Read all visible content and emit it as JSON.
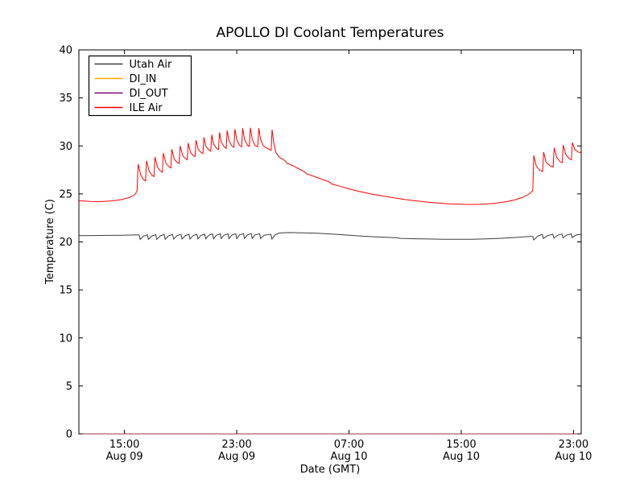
{
  "chart_data": {
    "type": "line",
    "title": "APOLLO DI Coolant Temperatures",
    "xlabel": "Date (GMT)",
    "ylabel": "Temperature (C)",
    "ylim": [
      0,
      40
    ],
    "yticks": [
      0,
      5,
      10,
      15,
      20,
      25,
      30,
      35,
      40
    ],
    "xlim": [
      0,
      35.8
    ],
    "x_units_note": "hours from left edge of plot",
    "xticks": [
      {
        "t": 3.25,
        "time": "15:00",
        "date": "Aug 09"
      },
      {
        "t": 11.25,
        "time": "23:00",
        "date": "Aug 09"
      },
      {
        "t": 19.25,
        "time": "07:00",
        "date": "Aug 10"
      },
      {
        "t": 27.25,
        "time": "15:00",
        "date": "Aug 10"
      },
      {
        "t": 35.25,
        "time": "23:00",
        "date": "Aug 10"
      }
    ],
    "legend": {
      "position": "upper left",
      "entries": [
        "Utah Air",
        "DI_IN",
        "DI_OUT",
        "ILE Air"
      ]
    },
    "series": [
      {
        "name": "Utah Air",
        "color": "#3c3c3c",
        "opacity": 1,
        "points": [
          [
            0,
            20.65
          ],
          [
            1,
            20.66
          ],
          [
            2,
            20.68
          ],
          [
            3,
            20.7
          ],
          [
            4,
            20.72
          ],
          [
            4.3,
            20.72
          ],
          [
            4.37,
            20.25
          ],
          [
            4.6,
            20.6
          ],
          [
            4.88,
            20.74
          ],
          [
            4.95,
            20.26
          ],
          [
            5.2,
            20.62
          ],
          [
            5.48,
            20.75
          ],
          [
            5.55,
            20.27
          ],
          [
            5.8,
            20.63
          ],
          [
            6.08,
            20.76
          ],
          [
            6.15,
            20.28
          ],
          [
            6.4,
            20.64
          ],
          [
            6.68,
            20.77
          ],
          [
            6.75,
            20.29
          ],
          [
            7,
            20.65
          ],
          [
            7.28,
            20.78
          ],
          [
            7.35,
            20.3
          ],
          [
            7.6,
            20.66
          ],
          [
            7.85,
            20.79
          ],
          [
            7.92,
            20.3
          ],
          [
            8.15,
            20.67
          ],
          [
            8.41,
            20.8
          ],
          [
            8.48,
            20.31
          ],
          [
            8.7,
            20.68
          ],
          [
            8.97,
            20.81
          ],
          [
            9.04,
            20.32
          ],
          [
            9.25,
            20.69
          ],
          [
            9.53,
            20.82
          ],
          [
            9.6,
            20.33
          ],
          [
            9.8,
            20.7
          ],
          [
            10.08,
            20.83
          ],
          [
            10.15,
            20.34
          ],
          [
            10.35,
            20.71
          ],
          [
            10.63,
            20.84
          ],
          [
            10.7,
            20.34
          ],
          [
            10.9,
            20.72
          ],
          [
            11.18,
            20.85
          ],
          [
            11.25,
            20.35
          ],
          [
            11.45,
            20.73
          ],
          [
            11.73,
            20.86
          ],
          [
            11.8,
            20.35
          ],
          [
            12,
            20.73
          ],
          [
            12.28,
            20.86
          ],
          [
            12.35,
            20.35
          ],
          [
            12.55,
            20.73
          ],
          [
            12.88,
            20.85
          ],
          [
            12.95,
            20.34
          ],
          [
            13.2,
            20.7
          ],
          [
            13.68,
            20.8
          ],
          [
            13.75,
            20.3
          ],
          [
            14,
            20.75
          ],
          [
            14.3,
            20.93
          ],
          [
            15,
            20.97
          ],
          [
            16,
            20.95
          ],
          [
            17,
            20.9
          ],
          [
            18,
            20.82
          ],
          [
            19,
            20.72
          ],
          [
            20,
            20.62
          ],
          [
            21,
            20.54
          ],
          [
            22,
            20.47
          ],
          [
            22.7,
            20.43
          ],
          [
            22.9,
            20.37
          ],
          [
            24,
            20.33
          ],
          [
            25,
            20.3
          ],
          [
            26,
            20.28
          ],
          [
            27,
            20.27
          ],
          [
            28,
            20.27
          ],
          [
            29,
            20.31
          ],
          [
            30,
            20.37
          ],
          [
            31,
            20.45
          ],
          [
            32.1,
            20.56
          ],
          [
            32.35,
            20.56
          ],
          [
            32.42,
            20.2
          ],
          [
            32.7,
            20.6
          ],
          [
            33.03,
            20.78
          ],
          [
            33.1,
            20.35
          ],
          [
            33.4,
            20.65
          ],
          [
            33.78,
            20.8
          ],
          [
            33.85,
            20.4
          ],
          [
            34.1,
            20.68
          ],
          [
            34.43,
            20.82
          ],
          [
            34.5,
            20.42
          ],
          [
            34.75,
            20.7
          ],
          [
            35.08,
            20.84
          ],
          [
            35.15,
            20.45
          ],
          [
            35.45,
            20.72
          ],
          [
            35.8,
            20.8
          ]
        ]
      },
      {
        "name": "DI_IN",
        "color": "#ffa500",
        "opacity": 0.7,
        "points": [
          [
            0,
            0
          ],
          [
            35.8,
            0
          ]
        ]
      },
      {
        "name": "DI_OUT",
        "color": "#800080",
        "opacity": 0.5,
        "points": [
          [
            0,
            0
          ],
          [
            35.8,
            0
          ]
        ]
      },
      {
        "name": "ILE Air",
        "color": "#ff0000",
        "opacity": 1,
        "points": [
          [
            0,
            24.3
          ],
          [
            0.8,
            24.22
          ],
          [
            1.6,
            24.2
          ],
          [
            2.4,
            24.28
          ],
          [
            3,
            24.4
          ],
          [
            3.6,
            24.62
          ],
          [
            4,
            24.95
          ],
          [
            4.15,
            25.3
          ],
          [
            4.22,
            28.1
          ],
          [
            4.4,
            27
          ],
          [
            4.6,
            26.5
          ],
          [
            4.75,
            26.35
          ],
          [
            4.82,
            28.45
          ],
          [
            5,
            27.4
          ],
          [
            5.2,
            26.95
          ],
          [
            5.35,
            26.8
          ],
          [
            5.42,
            28.85
          ],
          [
            5.6,
            27.8
          ],
          [
            5.8,
            27.4
          ],
          [
            5.95,
            27.25
          ],
          [
            6.02,
            29.25
          ],
          [
            6.2,
            28.2
          ],
          [
            6.4,
            27.85
          ],
          [
            6.55,
            27.7
          ],
          [
            6.62,
            29.65
          ],
          [
            6.8,
            28.6
          ],
          [
            7,
            28.3
          ],
          [
            7.15,
            28.15
          ],
          [
            7.22,
            30
          ],
          [
            7.4,
            29
          ],
          [
            7.57,
            28.7
          ],
          [
            7.72,
            28.55
          ],
          [
            7.79,
            30.3
          ],
          [
            7.95,
            29.35
          ],
          [
            8.13,
            29
          ],
          [
            8.28,
            28.9
          ],
          [
            8.35,
            30.6
          ],
          [
            8.5,
            29.65
          ],
          [
            8.68,
            29.35
          ],
          [
            8.84,
            29.2
          ],
          [
            8.91,
            30.9
          ],
          [
            9.05,
            29.95
          ],
          [
            9.25,
            29.6
          ],
          [
            9.4,
            29.45
          ],
          [
            9.47,
            31.15
          ],
          [
            9.6,
            30.2
          ],
          [
            9.8,
            29.75
          ],
          [
            9.95,
            29.6
          ],
          [
            10.02,
            31.4
          ],
          [
            10.15,
            30.4
          ],
          [
            10.35,
            29.9
          ],
          [
            10.5,
            29.75
          ],
          [
            10.57,
            31.6
          ],
          [
            10.7,
            30.55
          ],
          [
            10.9,
            30
          ],
          [
            11.05,
            29.85
          ],
          [
            11.12,
            31.75
          ],
          [
            11.25,
            30.65
          ],
          [
            11.45,
            30.05
          ],
          [
            11.6,
            29.9
          ],
          [
            11.67,
            31.85
          ],
          [
            11.8,
            30.7
          ],
          [
            12,
            30.1
          ],
          [
            12.15,
            29.95
          ],
          [
            12.22,
            31.9
          ],
          [
            12.35,
            30.7
          ],
          [
            12.55,
            30.05
          ],
          [
            12.75,
            29.9
          ],
          [
            12.82,
            31.85
          ],
          [
            12.95,
            30.65
          ],
          [
            13.15,
            30
          ],
          [
            13.35,
            29.8
          ],
          [
            13.6,
            29.6
          ],
          [
            13.7,
            29.55
          ],
          [
            13.77,
            31.7
          ],
          [
            13.9,
            30.2
          ],
          [
            14.05,
            29.3
          ],
          [
            14.3,
            28.8
          ],
          [
            14.7,
            28.45
          ],
          [
            14.82,
            28.2
          ],
          [
            15.3,
            27.9
          ],
          [
            15.75,
            27.55
          ],
          [
            16.05,
            27.35
          ],
          [
            16.2,
            27.1
          ],
          [
            16.8,
            26.8
          ],
          [
            17.35,
            26.5
          ],
          [
            17.85,
            26.25
          ],
          [
            18,
            26.05
          ],
          [
            18.6,
            25.8
          ],
          [
            19.3,
            25.5
          ],
          [
            20,
            25.25
          ],
          [
            20.8,
            25
          ],
          [
            21.6,
            24.8
          ],
          [
            22.4,
            24.6
          ],
          [
            23.2,
            24.42
          ],
          [
            24,
            24.28
          ],
          [
            24.8,
            24.15
          ],
          [
            25.6,
            24.05
          ],
          [
            26.4,
            23.97
          ],
          [
            27.2,
            23.92
          ],
          [
            28,
            23.9
          ],
          [
            28.8,
            23.93
          ],
          [
            29.6,
            24.02
          ],
          [
            30.4,
            24.18
          ],
          [
            31,
            24.35
          ],
          [
            31.6,
            24.62
          ],
          [
            32.1,
            25
          ],
          [
            32.35,
            25.35
          ],
          [
            32.42,
            29
          ],
          [
            32.6,
            27.9
          ],
          [
            32.85,
            27.45
          ],
          [
            33.05,
            27.35
          ],
          [
            33.12,
            29.35
          ],
          [
            33.3,
            28.3
          ],
          [
            33.6,
            27.9
          ],
          [
            33.8,
            27.8
          ],
          [
            33.87,
            29.8
          ],
          [
            34.05,
            28.8
          ],
          [
            34.3,
            28.35
          ],
          [
            34.45,
            28.25
          ],
          [
            34.52,
            30.1
          ],
          [
            34.7,
            29.1
          ],
          [
            34.95,
            28.65
          ],
          [
            35.1,
            28.55
          ],
          [
            35.17,
            30.35
          ],
          [
            35.35,
            29.6
          ],
          [
            35.6,
            29.35
          ],
          [
            35.8,
            29.3
          ]
        ]
      }
    ]
  }
}
